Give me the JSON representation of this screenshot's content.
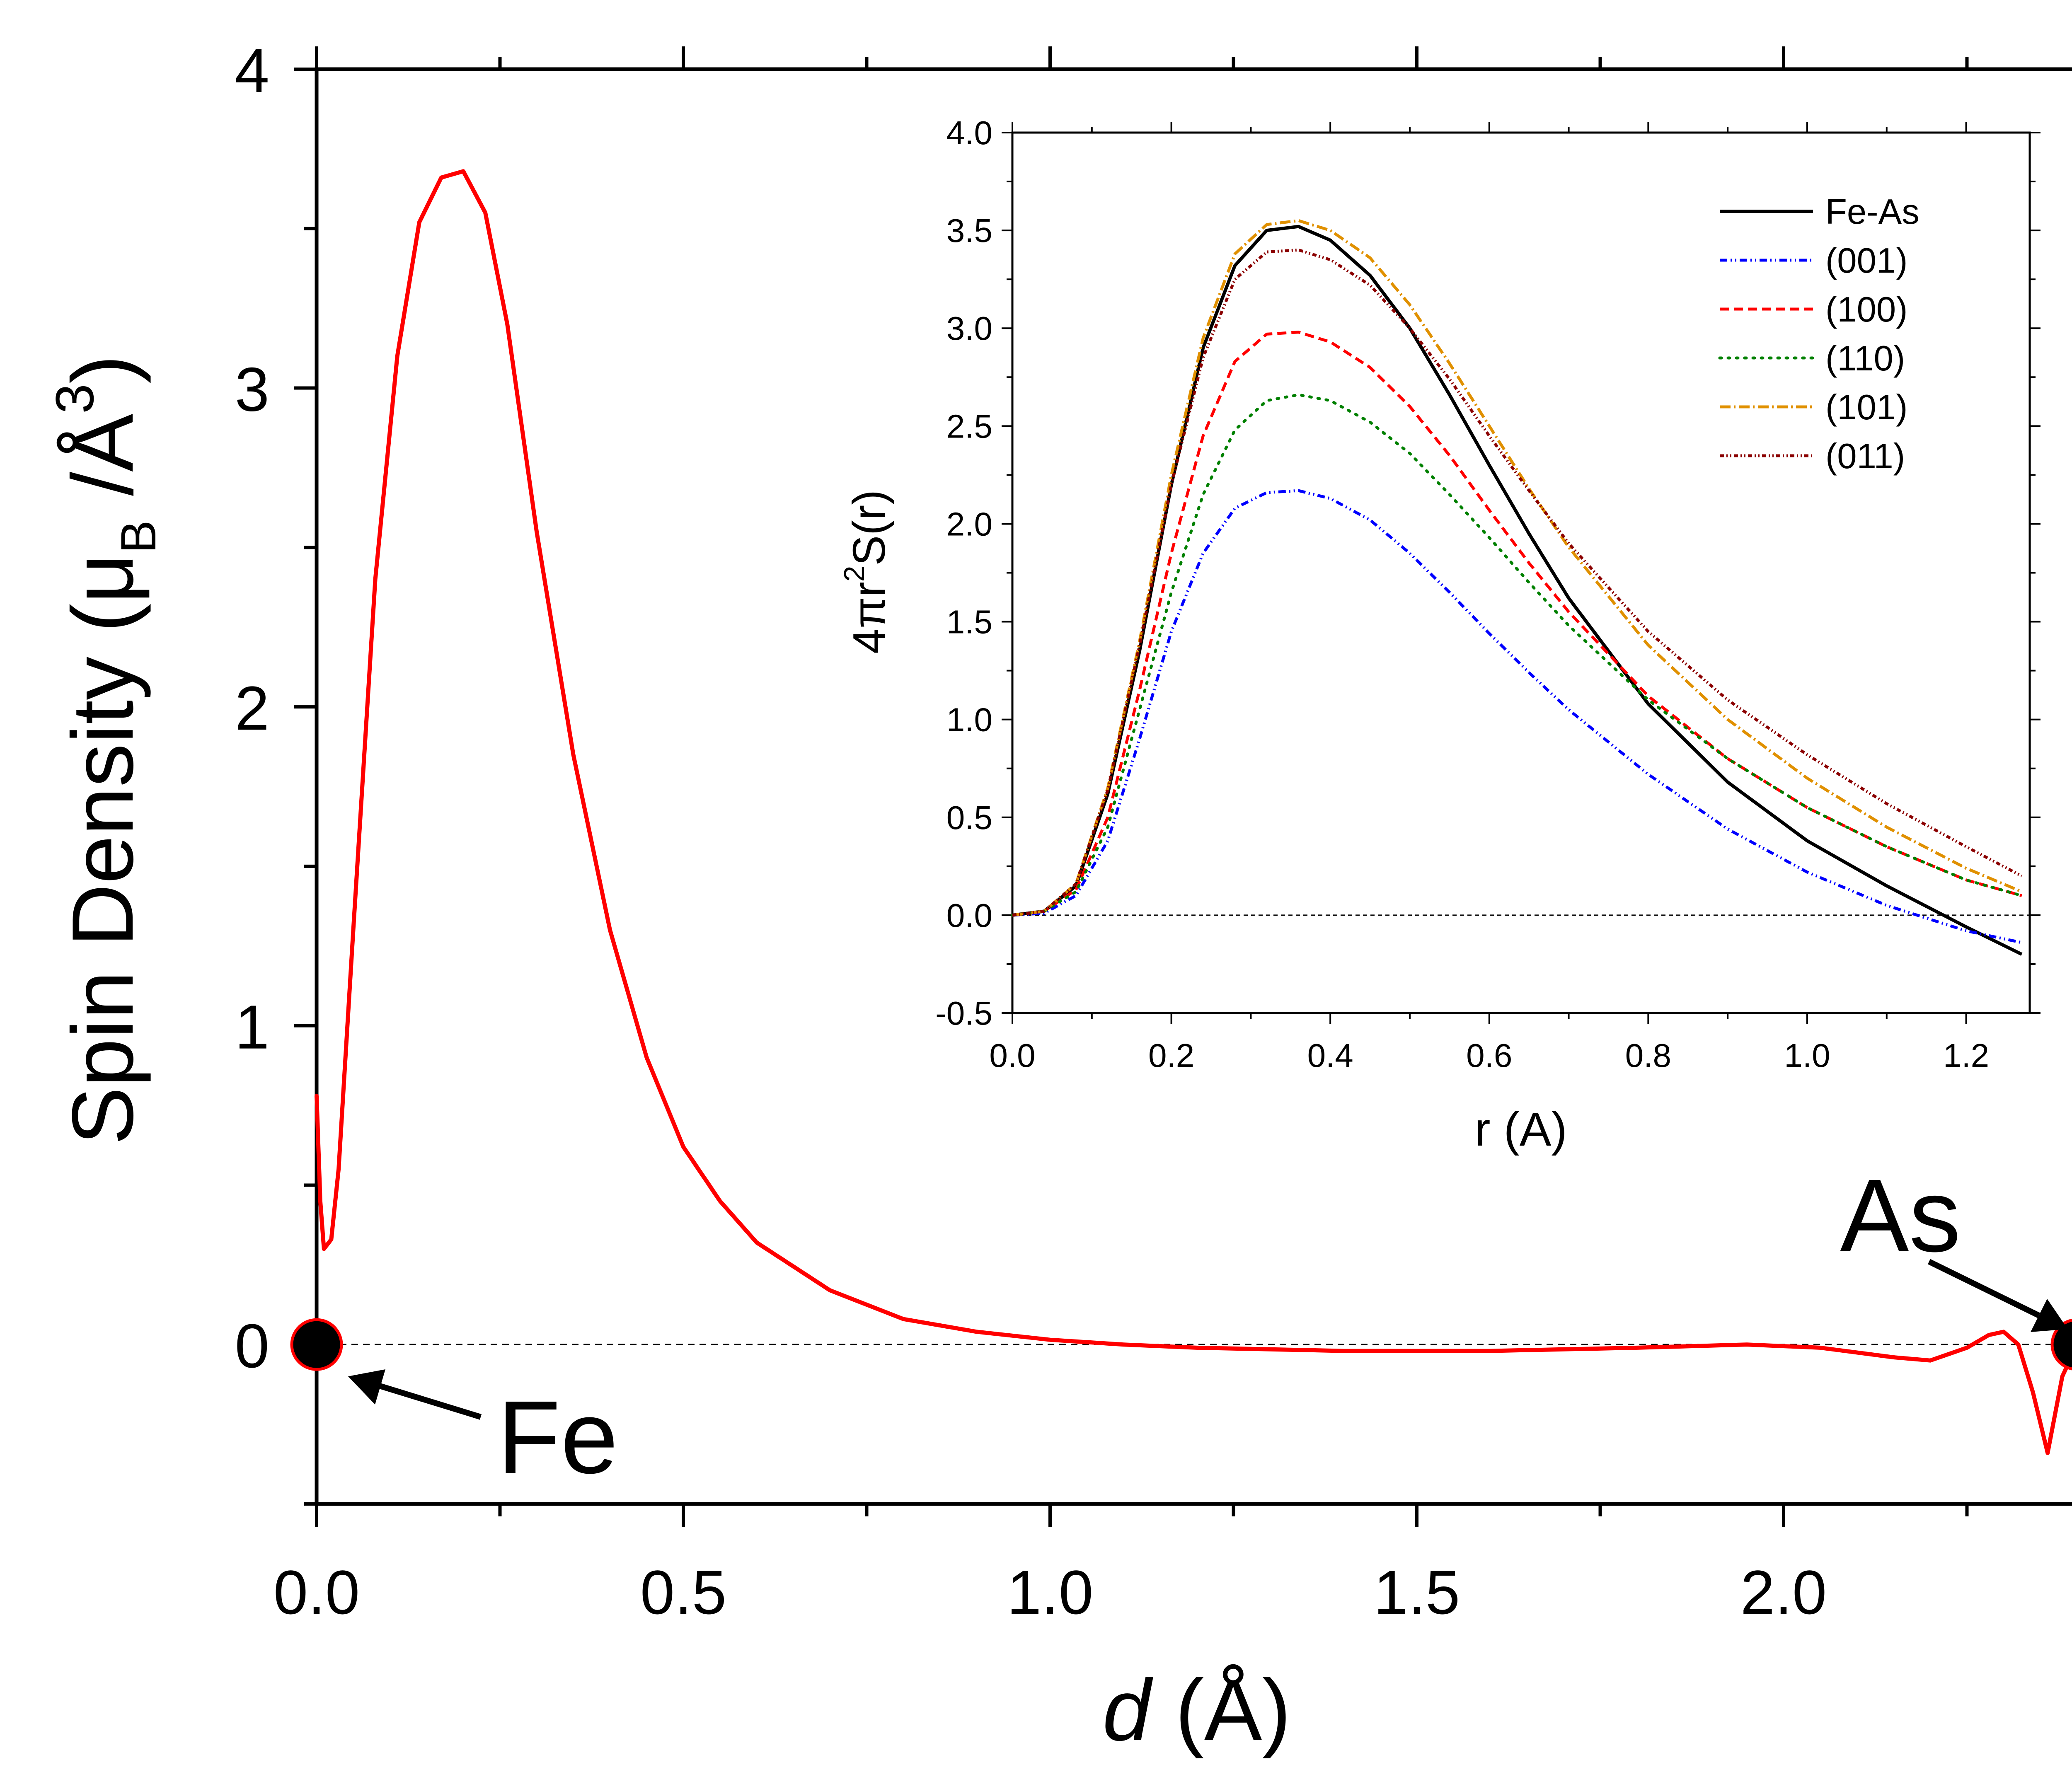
{
  "chart_data": [
    {
      "type": "line",
      "name": "main",
      "title": "",
      "xlabel": {
        "italic": "d",
        "rest": " (Å)"
      },
      "ylabel": {
        "text": "Spin Density (μ",
        "sub": "B",
        "mid": " /Å",
        "sup": "3",
        "end": ")"
      },
      "xlim": [
        0,
        2.4
      ],
      "ylim": [
        -0.5,
        4
      ],
      "xticks": [
        0.0,
        0.5,
        1.0,
        1.5,
        2.0
      ],
      "xtick_labels": [
        "0.0",
        "0.5",
        "1.0",
        "1.5",
        "2.0"
      ],
      "yticks": [
        0,
        1,
        2,
        3,
        4
      ],
      "ytick_labels": [
        "0",
        "1",
        "2",
        "3",
        "4"
      ],
      "reference_line_y": 0,
      "series": [
        {
          "name": "spin density Fe-As",
          "color": "#ff0000",
          "x": [
            0.0,
            0.005,
            0.01,
            0.02,
            0.03,
            0.05,
            0.08,
            0.11,
            0.14,
            0.17,
            0.2,
            0.23,
            0.26,
            0.3,
            0.35,
            0.4,
            0.45,
            0.5,
            0.55,
            0.6,
            0.7,
            0.8,
            0.9,
            1.0,
            1.1,
            1.2,
            1.4,
            1.6,
            1.8,
            1.95,
            2.05,
            2.15,
            2.2,
            2.25,
            2.28,
            2.3,
            2.32,
            2.34,
            2.36,
            2.38,
            2.4
          ],
          "values": [
            0.78,
            0.45,
            0.3,
            0.33,
            0.55,
            1.3,
            2.4,
            3.1,
            3.52,
            3.66,
            3.68,
            3.55,
            3.2,
            2.55,
            1.85,
            1.3,
            0.9,
            0.62,
            0.45,
            0.32,
            0.17,
            0.08,
            0.04,
            0.015,
            0.0,
            -0.01,
            -0.02,
            -0.02,
            -0.01,
            0.0,
            -0.01,
            -0.04,
            -0.05,
            -0.01,
            0.03,
            0.04,
            0.0,
            -0.15,
            -0.34,
            -0.1,
            0.0
          ]
        }
      ],
      "atoms": [
        {
          "label": "Fe",
          "x": 0.0,
          "y": 0
        },
        {
          "label": "As",
          "x": 2.4,
          "y": 0
        }
      ]
    },
    {
      "type": "line",
      "name": "inset",
      "title": "",
      "xlabel": "r (A)",
      "ylabel": {
        "pre": "4πr",
        "sup": "2",
        "post": "S(r)"
      },
      "xlim": [
        0,
        1.28
      ],
      "ylim": [
        -0.5,
        4.0
      ],
      "xticks": [
        0.0,
        0.2,
        0.4,
        0.6,
        0.8,
        1.0,
        1.2
      ],
      "xtick_labels": [
        "0.0",
        "0.2",
        "0.4",
        "0.6",
        "0.8",
        "1.0",
        "1.2"
      ],
      "yticks": [
        -0.5,
        0.0,
        0.5,
        1.0,
        1.5,
        2.0,
        2.5,
        3.0,
        3.5,
        4.0
      ],
      "ytick_labels": [
        "-0.5",
        "0.0",
        "0.5",
        "1.0",
        "1.5",
        "2.0",
        "2.5",
        "3.0",
        "3.5",
        "4.0"
      ],
      "reference_line_y": 0,
      "legend_position": "top-right",
      "x": [
        0.0,
        0.04,
        0.08,
        0.12,
        0.16,
        0.2,
        0.24,
        0.28,
        0.32,
        0.36,
        0.4,
        0.45,
        0.5,
        0.55,
        0.6,
        0.65,
        0.7,
        0.8,
        0.9,
        1.0,
        1.1,
        1.2,
        1.27
      ],
      "series": [
        {
          "name": "Fe-As",
          "color": "#000000",
          "dash": "",
          "values": [
            0.0,
            0.02,
            0.15,
            0.62,
            1.35,
            2.2,
            2.9,
            3.32,
            3.5,
            3.52,
            3.45,
            3.27,
            3.0,
            2.66,
            2.3,
            1.95,
            1.62,
            1.08,
            0.68,
            0.38,
            0.15,
            -0.06,
            -0.2
          ]
        },
        {
          "name": "(001)",
          "color": "#0000ff",
          "dash": "18,8,3,8,3,8",
          "values": [
            0.0,
            0.01,
            0.1,
            0.38,
            0.9,
            1.45,
            1.85,
            2.08,
            2.16,
            2.17,
            2.13,
            2.02,
            1.85,
            1.65,
            1.44,
            1.24,
            1.05,
            0.72,
            0.44,
            0.22,
            0.05,
            -0.08,
            -0.14
          ]
        },
        {
          "name": "(100)",
          "color": "#ff0000",
          "dash": "22,12",
          "values": [
            0.0,
            0.02,
            0.13,
            0.5,
            1.15,
            1.85,
            2.45,
            2.83,
            2.97,
            2.98,
            2.93,
            2.8,
            2.6,
            2.35,
            2.07,
            1.8,
            1.55,
            1.12,
            0.8,
            0.55,
            0.35,
            0.18,
            0.1
          ]
        },
        {
          "name": "(110)",
          "color": "#008000",
          "dash": "4,16",
          "values": [
            0.0,
            0.02,
            0.12,
            0.45,
            1.05,
            1.65,
            2.15,
            2.48,
            2.63,
            2.66,
            2.63,
            2.52,
            2.36,
            2.15,
            1.93,
            1.7,
            1.48,
            1.1,
            0.8,
            0.55,
            0.35,
            0.18,
            0.1
          ]
        },
        {
          "name": "(101)",
          "color": "#e09000",
          "dash": "26,8,4,8",
          "values": [
            0.0,
            0.02,
            0.16,
            0.65,
            1.4,
            2.25,
            2.95,
            3.38,
            3.53,
            3.55,
            3.5,
            3.36,
            3.12,
            2.82,
            2.5,
            2.18,
            1.88,
            1.38,
            1.0,
            0.7,
            0.45,
            0.24,
            0.12
          ]
        },
        {
          "name": "(011)",
          "color": "#8b0000",
          "dash": "10,6,3,6,3,6",
          "values": [
            0.0,
            0.02,
            0.16,
            0.64,
            1.38,
            2.2,
            2.85,
            3.25,
            3.39,
            3.4,
            3.35,
            3.22,
            3.0,
            2.74,
            2.45,
            2.17,
            1.9,
            1.45,
            1.1,
            0.82,
            0.57,
            0.35,
            0.2
          ]
        }
      ]
    }
  ]
}
